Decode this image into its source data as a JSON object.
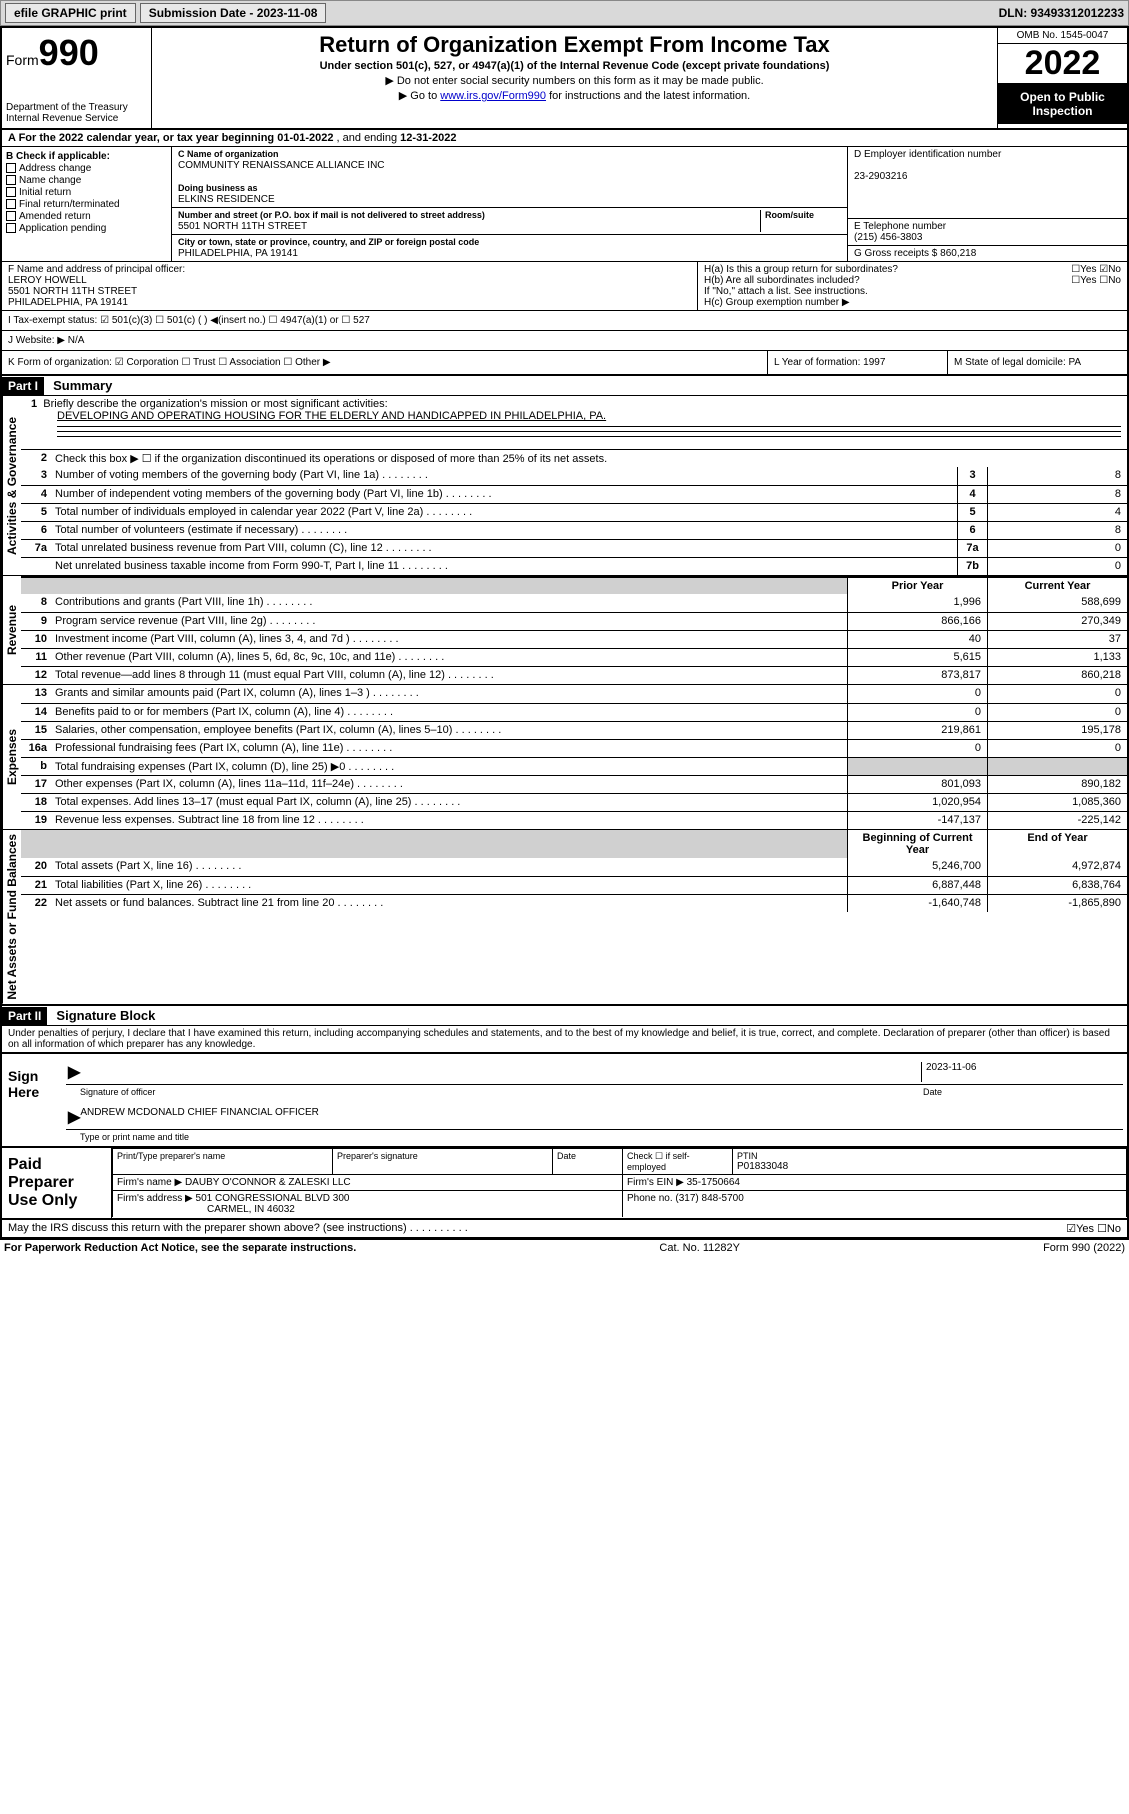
{
  "topbar": {
    "efile": "efile GRAPHIC print",
    "submission_label": "Submission Date - 2023-11-08",
    "dln": "DLN: 93493312012233"
  },
  "header": {
    "form_word": "Form",
    "form_num": "990",
    "dept": "Department of the Treasury",
    "irs": "Internal Revenue Service",
    "title": "Return of Organization Exempt From Income Tax",
    "sub": "Under section 501(c), 527, or 4947(a)(1) of the Internal Revenue Code (except private foundations)",
    "note1": "▶ Do not enter social security numbers on this form as it may be made public.",
    "note2_pre": "▶ Go to ",
    "note2_link": "www.irs.gov/Form990",
    "note2_post": " for instructions and the latest information.",
    "omb": "OMB No. 1545-0047",
    "year": "2022",
    "open": "Open to Public Inspection"
  },
  "row_a": {
    "text_pre": "A For the 2022 calendar year, or tax year beginning ",
    "begin": "01-01-2022",
    "mid": " , and ending ",
    "end": "12-31-2022"
  },
  "col_b": {
    "head": "B Check if applicable:",
    "items": [
      "Address change",
      "Name change",
      "Initial return",
      "Final return/terminated",
      "Amended return",
      "Application pending"
    ]
  },
  "col_c": {
    "name_label": "C Name of organization",
    "name": "COMMUNITY RENAISSANCE ALLIANCE INC",
    "dba_label": "Doing business as",
    "dba": "ELKINS RESIDENCE",
    "addr_label": "Number and street (or P.O. box if mail is not delivered to street address)",
    "room_label": "Room/suite",
    "addr": "5501 NORTH 11TH STREET",
    "city_label": "City or town, state or province, country, and ZIP or foreign postal code",
    "city": "PHILADELPHIA, PA  19141"
  },
  "col_d": {
    "ein_label": "D Employer identification number",
    "ein": "23-2903216",
    "phone_label": "E Telephone number",
    "phone": "(215) 456-3803",
    "gross_label": "G Gross receipts $",
    "gross": "860,218"
  },
  "sec_f": {
    "label": "F Name and address of principal officer:",
    "name": "LEROY HOWELL",
    "addr1": "5501 NORTH 11TH STREET",
    "addr2": "PHILADELPHIA, PA  19141"
  },
  "sec_h": {
    "ha": "H(a)  Is this a group return for subordinates?",
    "ha_ans": "☐Yes ☑No",
    "hb": "H(b)  Are all subordinates included?",
    "hb_ans": "☐Yes ☐No",
    "hb_note": "If \"No,\" attach a list. See instructions.",
    "hc": "H(c)  Group exemption number ▶"
  },
  "sec_i": {
    "label": "I   Tax-exempt status:",
    "opts": "☑ 501(c)(3)   ☐ 501(c) (  ) ◀(insert no.)   ☐ 4947(a)(1) or  ☐ 527"
  },
  "sec_j": {
    "label": "J  Website: ▶",
    "val": "N/A"
  },
  "sec_k": {
    "label": "K Form of organization:",
    "opts": "☑ Corporation  ☐ Trust  ☐ Association  ☐ Other ▶"
  },
  "sec_l": {
    "label": "L Year of formation:",
    "val": "1997"
  },
  "sec_m": {
    "label": "M State of legal domicile:",
    "val": "PA"
  },
  "part1": {
    "head": "Part I",
    "title": "Summary"
  },
  "mission": {
    "num": "1",
    "label": "Briefly describe the organization's mission or most significant activities:",
    "text": "DEVELOPING AND OPERATING HOUSING FOR THE ELDERLY AND HANDICAPPED IN PHILADELPHIA, PA."
  },
  "gov": {
    "vlabel": "Activities & Governance",
    "l2": "Check this box ▶ ☐ if the organization discontinued its operations or disposed of more than 25% of its net assets.",
    "lines": [
      {
        "n": "3",
        "d": "Number of voting members of the governing body (Part VI, line 1a)",
        "b": "3",
        "v": "8"
      },
      {
        "n": "4",
        "d": "Number of independent voting members of the governing body (Part VI, line 1b)",
        "b": "4",
        "v": "8"
      },
      {
        "n": "5",
        "d": "Total number of individuals employed in calendar year 2022 (Part V, line 2a)",
        "b": "5",
        "v": "4"
      },
      {
        "n": "6",
        "d": "Total number of volunteers (estimate if necessary)",
        "b": "6",
        "v": "8"
      },
      {
        "n": "7a",
        "d": "Total unrelated business revenue from Part VIII, column (C), line 12",
        "b": "7a",
        "v": "0"
      },
      {
        "n": " ",
        "d": "Net unrelated business taxable income from Form 990-T, Part I, line 11",
        "b": "7b",
        "v": "0"
      }
    ]
  },
  "rev": {
    "vlabel": "Revenue",
    "hdr_prior": "Prior Year",
    "hdr_curr": "Current Year",
    "lines": [
      {
        "n": "8",
        "d": "Contributions and grants (Part VIII, line 1h)",
        "p": "1,996",
        "c": "588,699"
      },
      {
        "n": "9",
        "d": "Program service revenue (Part VIII, line 2g)",
        "p": "866,166",
        "c": "270,349"
      },
      {
        "n": "10",
        "d": "Investment income (Part VIII, column (A), lines 3, 4, and 7d )",
        "p": "40",
        "c": "37"
      },
      {
        "n": "11",
        "d": "Other revenue (Part VIII, column (A), lines 5, 6d, 8c, 9c, 10c, and 11e)",
        "p": "5,615",
        "c": "1,133"
      },
      {
        "n": "12",
        "d": "Total revenue—add lines 8 through 11 (must equal Part VIII, column (A), line 12)",
        "p": "873,817",
        "c": "860,218"
      }
    ]
  },
  "exp": {
    "vlabel": "Expenses",
    "lines": [
      {
        "n": "13",
        "d": "Grants and similar amounts paid (Part IX, column (A), lines 1–3 )",
        "p": "0",
        "c": "0"
      },
      {
        "n": "14",
        "d": "Benefits paid to or for members (Part IX, column (A), line 4)",
        "p": "0",
        "c": "0"
      },
      {
        "n": "15",
        "d": "Salaries, other compensation, employee benefits (Part IX, column (A), lines 5–10)",
        "p": "219,861",
        "c": "195,178"
      },
      {
        "n": "16a",
        "d": "Professional fundraising fees (Part IX, column (A), line 11e)",
        "p": "0",
        "c": "0"
      },
      {
        "n": "b",
        "d": "Total fundraising expenses (Part IX, column (D), line 25) ▶0",
        "p": "",
        "c": "",
        "shade": true
      },
      {
        "n": "17",
        "d": "Other expenses (Part IX, column (A), lines 11a–11d, 11f–24e)",
        "p": "801,093",
        "c": "890,182"
      },
      {
        "n": "18",
        "d": "Total expenses. Add lines 13–17 (must equal Part IX, column (A), line 25)",
        "p": "1,020,954",
        "c": "1,085,360"
      },
      {
        "n": "19",
        "d": "Revenue less expenses. Subtract line 18 from line 12",
        "p": "-147,137",
        "c": "-225,142"
      }
    ]
  },
  "net": {
    "vlabel": "Net Assets or Fund Balances",
    "hdr_beg": "Beginning of Current Year",
    "hdr_end": "End of Year",
    "lines": [
      {
        "n": "20",
        "d": "Total assets (Part X, line 16)",
        "p": "5,246,700",
        "c": "4,972,874"
      },
      {
        "n": "21",
        "d": "Total liabilities (Part X, line 26)",
        "p": "6,887,448",
        "c": "6,838,764"
      },
      {
        "n": "22",
        "d": "Net assets or fund balances. Subtract line 21 from line 20",
        "p": "-1,640,748",
        "c": "-1,865,890"
      }
    ]
  },
  "part2": {
    "head": "Part II",
    "title": "Signature Block"
  },
  "perjury": "Under penalties of perjury, I declare that I have examined this return, including accompanying schedules and statements, and to the best of my knowledge and belief, it is true, correct, and complete. Declaration of preparer (other than officer) is based on all information of which preparer has any knowledge.",
  "sign": {
    "label": "Sign Here",
    "sig_label": "Signature of officer",
    "date_label": "Date",
    "date": "2023-11-06",
    "name": "ANDREW MCDONALD CHIEF FINANCIAL OFFICER",
    "name_label": "Type or print name and title"
  },
  "paid": {
    "label": "Paid Preparer Use Only",
    "h1": "Print/Type preparer's name",
    "h2": "Preparer's signature",
    "h3": "Date",
    "h4_a": "Check ☐ if self-employed",
    "h4_b": "PTIN",
    "ptin": "P01833048",
    "firm_label": "Firm's name    ▶",
    "firm": "DAUBY O'CONNOR & ZALESKI LLC",
    "ein_label": "Firm's EIN ▶",
    "ein": "35-1750664",
    "addr_label": "Firm's address ▶",
    "addr1": "501 CONGRESSIONAL BLVD 300",
    "addr2": "CARMEL, IN  46032",
    "phone_label": "Phone no.",
    "phone": "(317) 848-5700"
  },
  "discuss": {
    "q": "May the IRS discuss this return with the preparer shown above? (see instructions)",
    "ans": "☑Yes  ☐No"
  },
  "footer": {
    "left": "For Paperwork Reduction Act Notice, see the separate instructions.",
    "mid": "Cat. No. 11282Y",
    "right": "Form 990 (2022)"
  },
  "style": {
    "accent": "#2a7",
    "link": "#0000cc",
    "border": "#000000",
    "shade": "#d0d0d0",
    "topbar_bg": "#d9d9d9"
  }
}
